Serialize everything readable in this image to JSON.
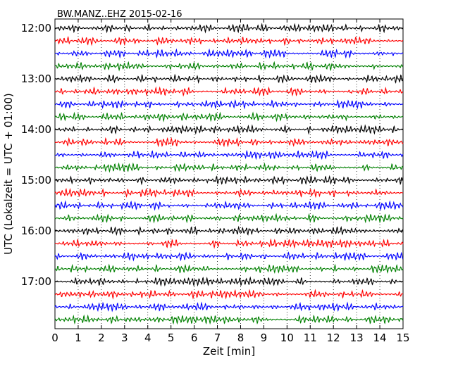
{
  "chart_data": {
    "type": "line",
    "title": "BW.MANZ..EHZ 2015-02-16",
    "xlabel": "Zeit  [min]",
    "ylabel": "UTC (Lokalzeit = UTC + 01:00)",
    "xlim": [
      0,
      15
    ],
    "x_ticks": [
      "0",
      "1",
      "2",
      "3",
      "4",
      "5",
      "6",
      "7",
      "8",
      "9",
      "10",
      "11",
      "12",
      "13",
      "14",
      "15"
    ],
    "y_tick_labels": [
      "12:00",
      "13:00",
      "14:00",
      "15:00",
      "16:00",
      "17:00"
    ],
    "trace_start_times": [
      "12:00",
      "12:15",
      "12:30",
      "12:45",
      "13:00",
      "13:15",
      "13:30",
      "13:45",
      "14:00",
      "14:15",
      "14:30",
      "14:45",
      "15:00",
      "15:15",
      "15:30",
      "15:45",
      "16:00",
      "16:15",
      "16:30",
      "16:45",
      "17:00",
      "17:15",
      "17:30",
      "17:45"
    ],
    "trace_colors": [
      "#000000",
      "#ff0000",
      "#0000ff",
      "#008000"
    ],
    "grid": {
      "x_dotted": true
    }
  }
}
